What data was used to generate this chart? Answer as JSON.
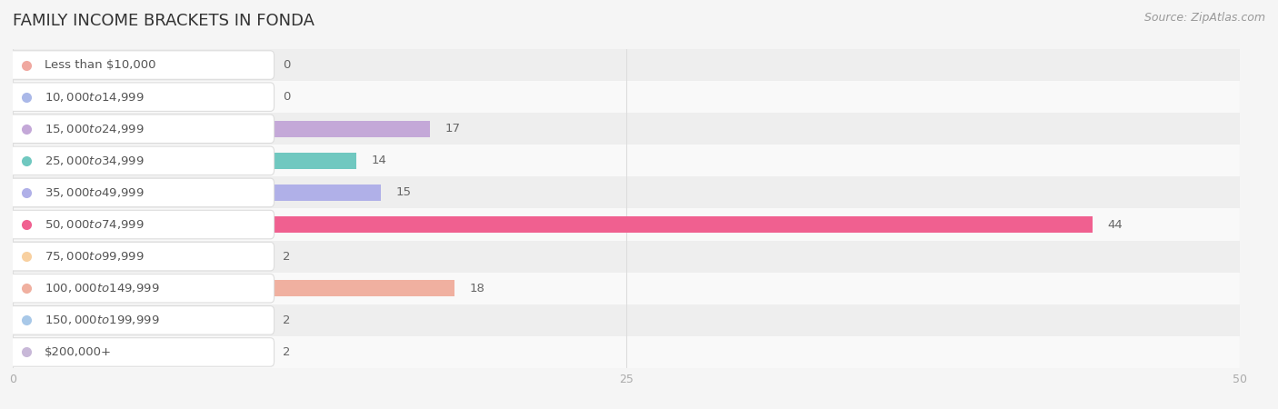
{
  "title": "FAMILY INCOME BRACKETS IN FONDA",
  "source": "Source: ZipAtlas.com",
  "categories": [
    "Less than $10,000",
    "$10,000 to $14,999",
    "$15,000 to $24,999",
    "$25,000 to $34,999",
    "$35,000 to $49,999",
    "$50,000 to $74,999",
    "$75,000 to $99,999",
    "$100,000 to $149,999",
    "$150,000 to $199,999",
    "$200,000+"
  ],
  "values": [
    0,
    0,
    17,
    14,
    15,
    44,
    2,
    18,
    2,
    2
  ],
  "bar_colors": [
    "#f0a8a0",
    "#aab8e8",
    "#c4a8d8",
    "#70c8c0",
    "#b0b0e8",
    "#f06090",
    "#f8d0a0",
    "#f0b0a0",
    "#a8c8e8",
    "#c8b8d8"
  ],
  "label_bg_color": "#ffffff",
  "dot_colors": [
    "#f0a8a0",
    "#aab8e8",
    "#c4a8d8",
    "#70c8c0",
    "#b0b0e8",
    "#f06090",
    "#f8d0a0",
    "#f0b0a0",
    "#a8c8e8",
    "#c8b8d8"
  ],
  "xlim": [
    0,
    50
  ],
  "xticks": [
    0,
    25,
    50
  ],
  "background_color": "#f5f5f5",
  "row_bg_even": "#eeeeee",
  "row_bg_odd": "#f9f9f9",
  "title_fontsize": 13,
  "source_fontsize": 9,
  "bar_height": 0.52,
  "label_fontsize": 9.5,
  "value_fontsize": 9.5,
  "value_color": "#666666",
  "label_text_color": "#555555",
  "tick_color": "#aaaaaa",
  "grid_color": "#dddddd"
}
